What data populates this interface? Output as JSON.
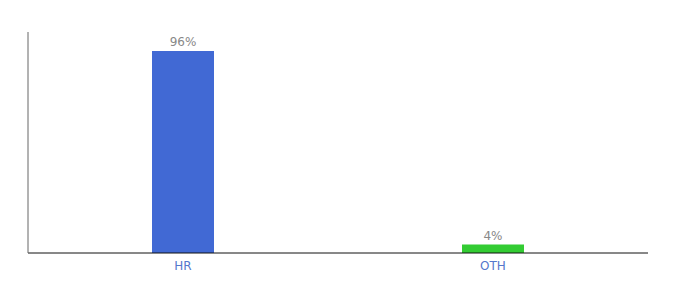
{
  "chart_data": {
    "type": "bar",
    "categories": [
      "HR",
      "OTH"
    ],
    "values": [
      96,
      4
    ],
    "value_labels": [
      "96%",
      "4%"
    ],
    "colors": [
      "#4169d4",
      "#33cc33"
    ],
    "ylim": [
      0,
      105
    ],
    "data_labels": true,
    "tick_labels": "x"
  }
}
